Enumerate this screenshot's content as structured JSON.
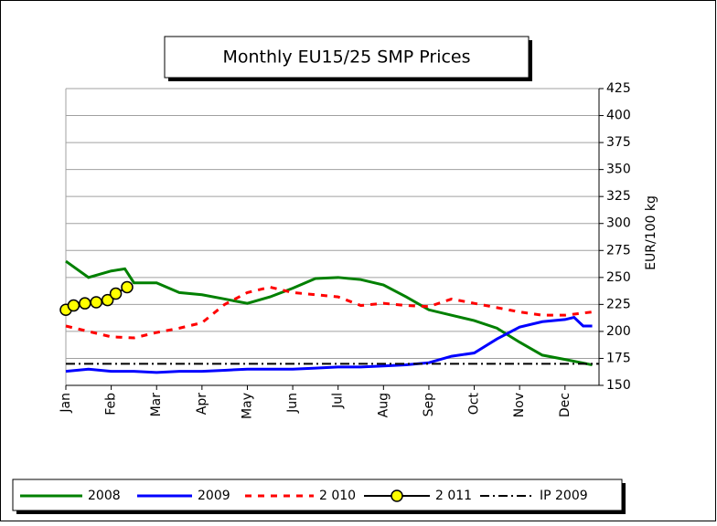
{
  "chart_data": {
    "type": "line",
    "title": "Monthly EU15/25 SMP Prices",
    "y_label": "EUR/100 kg",
    "xlim": [
      0,
      11.75
    ],
    "ylim": [
      150,
      425
    ],
    "xticks": [
      {
        "value": 0,
        "label": "Jan"
      },
      {
        "value": 1,
        "label": "Feb"
      },
      {
        "value": 2,
        "label": "Mar"
      },
      {
        "value": 3,
        "label": "Apr"
      },
      {
        "value": 4,
        "label": "May"
      },
      {
        "value": 5,
        "label": "Jun"
      },
      {
        "value": 6,
        "label": "Jul"
      },
      {
        "value": 7,
        "label": "Aug"
      },
      {
        "value": 8,
        "label": "Sep"
      },
      {
        "value": 9,
        "label": "Oct"
      },
      {
        "value": 10,
        "label": "Nov"
      },
      {
        "value": 11,
        "label": "Dec"
      }
    ],
    "yticks": [
      150,
      175,
      200,
      225,
      250,
      275,
      300,
      325,
      350,
      375,
      400,
      425
    ],
    "grid": true,
    "series": [
      {
        "name": "2008",
        "color": "#008000",
        "style": "solid",
        "x": [
          0,
          0.5,
          1,
          1.3,
          1.5,
          2,
          2.5,
          3,
          3.5,
          4,
          4.5,
          5,
          5.5,
          6,
          6.5,
          7,
          7.5,
          8,
          8.5,
          9,
          9.5,
          10,
          10.5,
          11,
          11.6
        ],
        "values": [
          265,
          250,
          256,
          258,
          245,
          245,
          236,
          234,
          230,
          226,
          232,
          240,
          249,
          250,
          248,
          243,
          232,
          220,
          215,
          210,
          203,
          190,
          178,
          174,
          169
        ]
      },
      {
        "name": "2009",
        "color": "#0000ff",
        "style": "solid",
        "x": [
          0,
          0.5,
          1,
          1.5,
          2,
          2.5,
          3,
          3.5,
          4,
          4.5,
          5,
          5.5,
          6,
          6.5,
          7,
          7.5,
          8,
          8.5,
          9,
          9.5,
          10,
          10.5,
          11,
          11.2,
          11.4,
          11.6
        ],
        "values": [
          163,
          165,
          163,
          163,
          162,
          163,
          163,
          164,
          165,
          165,
          165,
          166,
          167,
          167,
          168,
          169,
          171,
          177,
          180,
          193,
          204,
          209,
          211,
          213,
          205,
          205
        ]
      },
      {
        "name": "2 010",
        "color": "#ff0000",
        "style": "dashed",
        "x": [
          0,
          0.5,
          1,
          1.5,
          2,
          2.5,
          3,
          3.5,
          4,
          4.5,
          5,
          5.5,
          6,
          6.5,
          7,
          7.5,
          8,
          8.5,
          9,
          9.5,
          10,
          10.5,
          11,
          11.6
        ],
        "values": [
          205,
          200,
          195,
          194,
          199,
          203,
          208,
          225,
          236,
          241,
          236,
          234,
          232,
          224,
          226,
          224,
          223,
          230,
          226,
          222,
          218,
          215,
          215,
          218
        ]
      },
      {
        "name": "2 011",
        "color": "#000000",
        "marker_color": "#ffff00",
        "style": "marker",
        "x": [
          0,
          0.17,
          0.42,
          0.67,
          0.92,
          1.1,
          1.35
        ],
        "values": [
          220,
          224,
          226,
          227,
          229,
          235,
          241
        ]
      }
    ],
    "ip_line": {
      "name": "IP 2009",
      "value": 170,
      "color": "#000000"
    }
  }
}
